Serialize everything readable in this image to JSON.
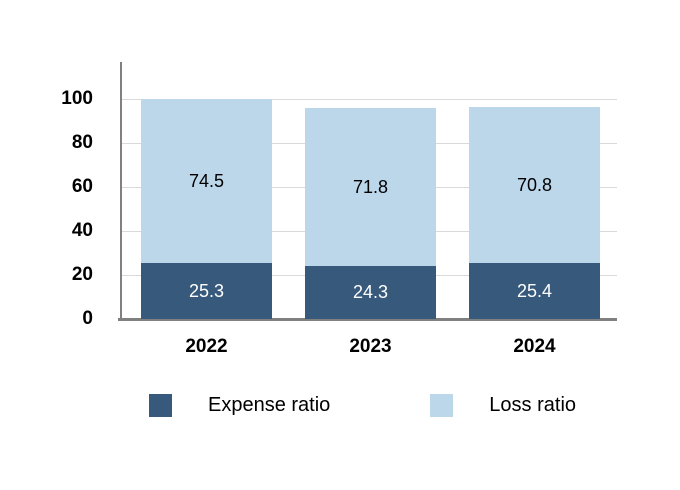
{
  "chart_data": {
    "type": "bar",
    "stacked": true,
    "title": "",
    "xlabel": "",
    "ylabel": "",
    "categories": [
      "2022",
      "2023",
      "2024"
    ],
    "series": [
      {
        "name": "Expense ratio",
        "values": [
          25.3,
          24.3,
          25.4
        ],
        "color": "#36597C",
        "label_color": "#FFFFFF"
      },
      {
        "name": "Loss ratio",
        "values": [
          74.5,
          71.8,
          70.8
        ],
        "color": "#BCD6EA",
        "label_color": "#000000"
      }
    ],
    "y_axis": {
      "ticks": [
        0,
        20,
        40,
        60,
        80,
        100
      ],
      "range": [
        0,
        100
      ]
    },
    "grid": "horizontal-only",
    "legend_position": "bottom"
  },
  "colors": {
    "expense": "#36597C",
    "loss": "#BCD6EA",
    "gridline": "#D9D9D9",
    "axis": "#808080",
    "background": "#FFFFFF"
  },
  "legend": {
    "items": [
      {
        "label": "Expense ratio",
        "color": "#36597C"
      },
      {
        "label": "Loss ratio",
        "color": "#BCD6EA"
      }
    ]
  }
}
